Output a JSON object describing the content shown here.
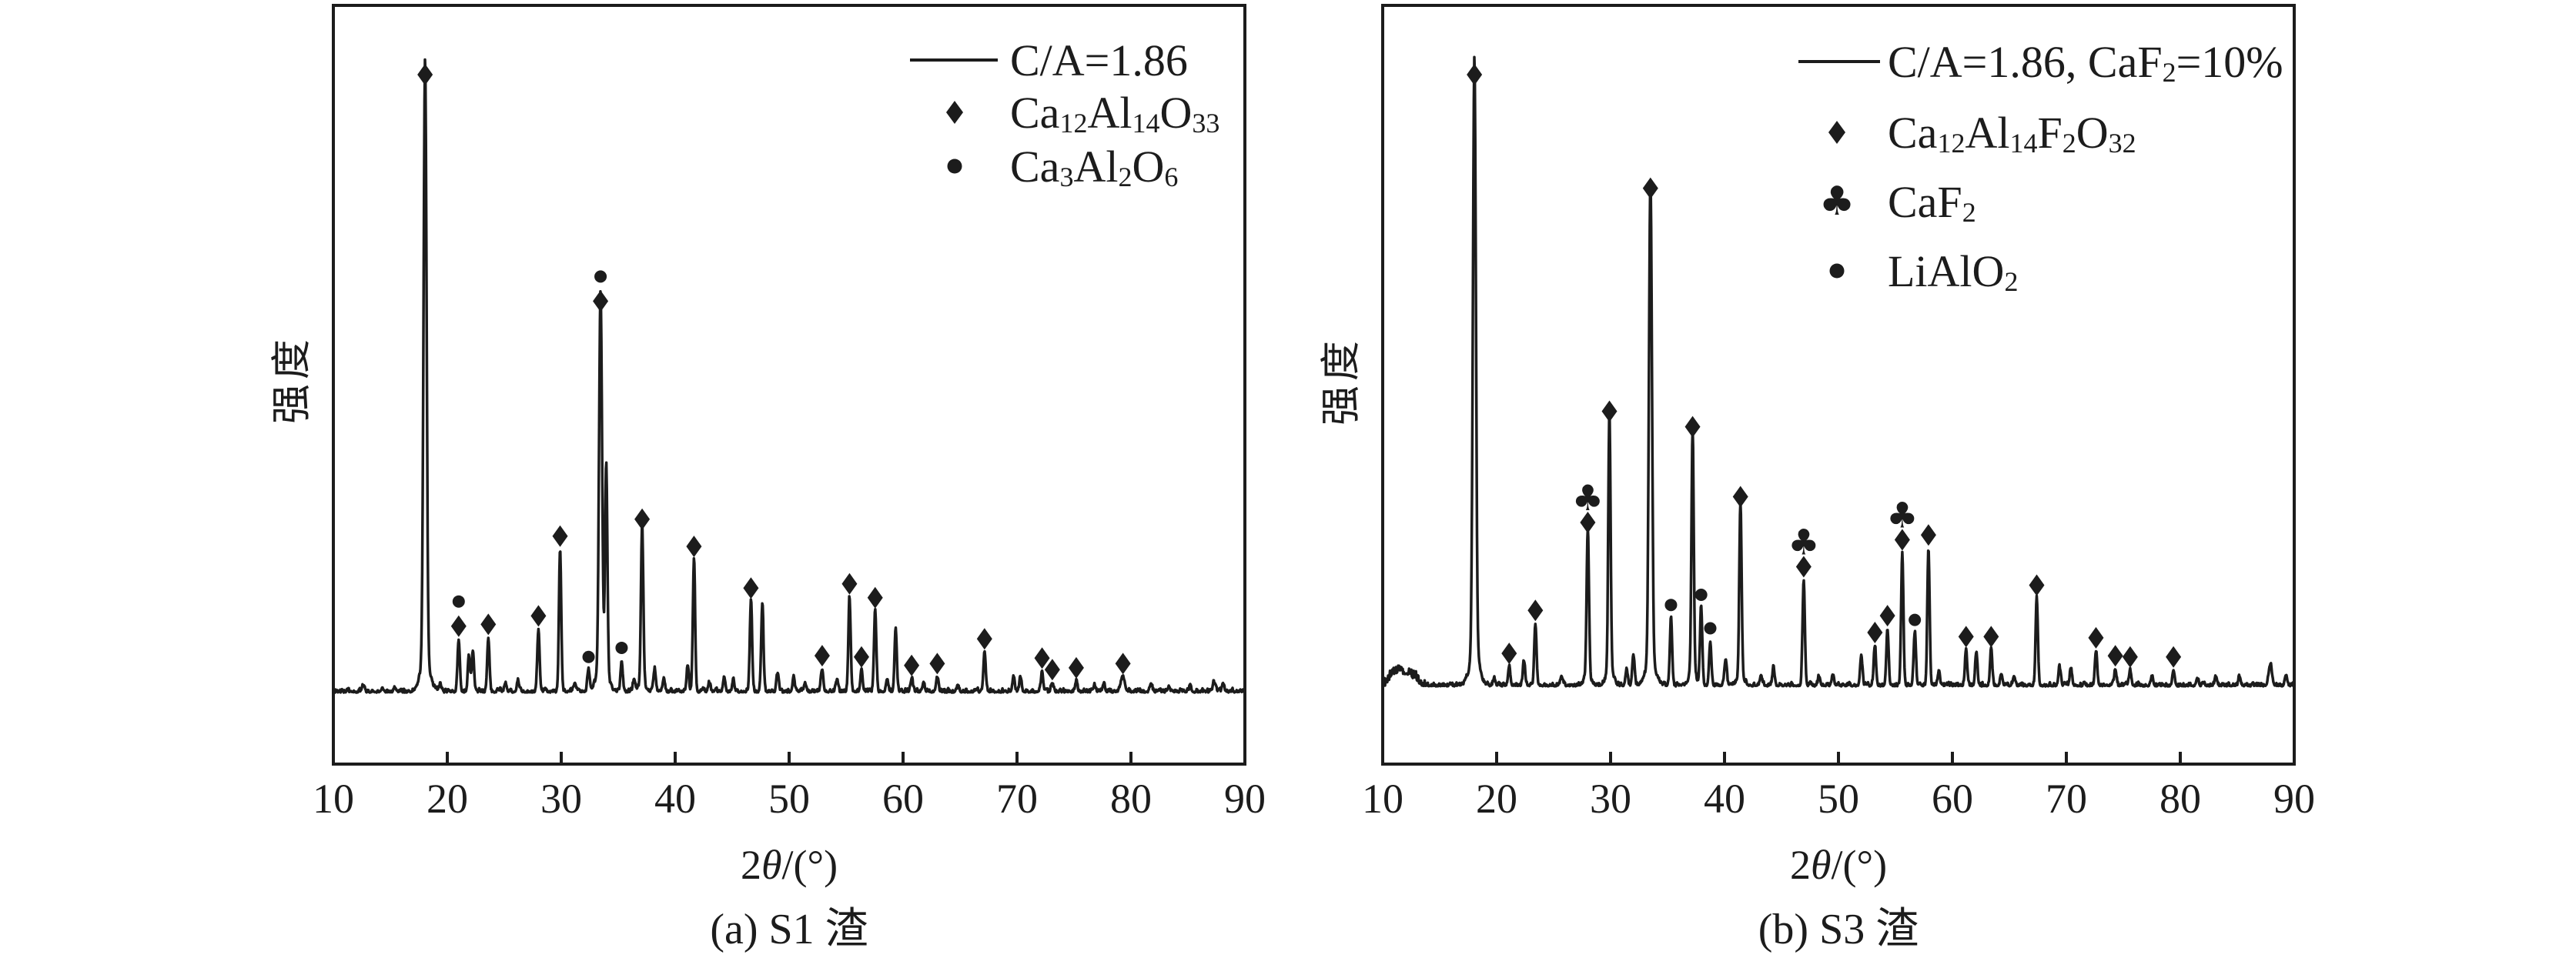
{
  "figure": {
    "background": "#ffffff",
    "ink_color": "#1c1c1c",
    "noise_amp": 6
  },
  "chart_data": [
    {
      "type": "line",
      "panel": "a",
      "caption": "(a) S1 渣",
      "xlabel_parts": [
        {
          "t": "2"
        },
        {
          "t": "θ",
          "italic": true
        },
        {
          "t": "/(°)"
        }
      ],
      "ylabel": "强度",
      "xlim": [
        10,
        90
      ],
      "x_ticks": [
        10,
        20,
        30,
        40,
        50,
        60,
        70,
        80,
        90
      ],
      "grid": false,
      "series_label": "C/A=1.86",
      "legend_position": "top-right-inside",
      "legend": [
        {
          "marker": "line",
          "parts": [
            {
              "t": "C/A=1.86"
            }
          ]
        },
        {
          "marker": "diamond",
          "parts": [
            {
              "t": "Ca"
            },
            {
              "s": "12"
            },
            {
              "t": "Al"
            },
            {
              "s": "14"
            },
            {
              "t": "O"
            },
            {
              "s": "33"
            }
          ]
        },
        {
          "marker": "circle",
          "parts": [
            {
              "t": "Ca"
            },
            {
              "s": "3"
            },
            {
              "t": "Al"
            },
            {
              "s": "2"
            },
            {
              "t": "O"
            },
            {
              "s": "6"
            }
          ]
        }
      ],
      "ylabel_note": "intensity (arbitrary units, no y ticks)",
      "noise_regions": [],
      "peaks": [
        {
          "x": 12.6,
          "h": 0.8
        },
        {
          "x": 14.3,
          "h": 0.7
        },
        {
          "x": 15.4,
          "h": 0.8
        },
        {
          "x": 18.05,
          "h": 100,
          "m": [
            "diamond"
          ],
          "s": 0.13
        },
        {
          "x": 19.4,
          "h": 1.2
        },
        {
          "x": 21.0,
          "h": 8.7,
          "m": [
            "diamond",
            "circle"
          ]
        },
        {
          "x": 21.9,
          "h": 5.7
        },
        {
          "x": 22.25,
          "h": 6.9
        },
        {
          "x": 23.6,
          "h": 9.0,
          "m": [
            "diamond"
          ]
        },
        {
          "x": 25.1,
          "h": 1.5
        },
        {
          "x": 26.2,
          "h": 1.8
        },
        {
          "x": 28.0,
          "h": 10.4,
          "m": [
            "diamond"
          ]
        },
        {
          "x": 29.9,
          "h": 23.6,
          "m": [
            "diamond"
          ]
        },
        {
          "x": 31.2,
          "h": 1.5
        },
        {
          "x": 32.4,
          "h": 3.6,
          "m": [
            "circle"
          ]
        },
        {
          "x": 33.45,
          "h": 62.5,
          "m": [
            "diamond",
            "circle"
          ],
          "s": 0.13
        },
        {
          "x": 33.95,
          "h": 34.8
        },
        {
          "x": 35.3,
          "h": 5.1,
          "m": [
            "circle"
          ]
        },
        {
          "x": 36.4,
          "h": 2.0
        },
        {
          "x": 37.1,
          "h": 26.4,
          "m": [
            "diamond"
          ]
        },
        {
          "x": 38.2,
          "h": 3.8
        },
        {
          "x": 39.0,
          "h": 2.2
        },
        {
          "x": 41.1,
          "h": 4.5
        },
        {
          "x": 41.65,
          "h": 21.9,
          "m": [
            "diamond"
          ]
        },
        {
          "x": 43.0,
          "h": 1.5
        },
        {
          "x": 44.3,
          "h": 2.5
        },
        {
          "x": 45.1,
          "h": 1.8
        },
        {
          "x": 46.65,
          "h": 15.0,
          "m": [
            "diamond"
          ]
        },
        {
          "x": 47.65,
          "h": 14.7
        },
        {
          "x": 49.0,
          "h": 3.2
        },
        {
          "x": 50.4,
          "h": 2.3
        },
        {
          "x": 51.4,
          "h": 1.5
        },
        {
          "x": 52.9,
          "h": 3.8,
          "m": [
            "diamond"
          ]
        },
        {
          "x": 54.2,
          "h": 1.8
        },
        {
          "x": 55.3,
          "h": 15.7,
          "m": [
            "diamond"
          ]
        },
        {
          "x": 56.35,
          "h": 3.6,
          "m": [
            "diamond"
          ]
        },
        {
          "x": 57.55,
          "h": 13.4,
          "m": [
            "diamond"
          ]
        },
        {
          "x": 58.6,
          "h": 2.2
        },
        {
          "x": 59.35,
          "h": 10.2
        },
        {
          "x": 60.75,
          "h": 2.2,
          "m": [
            "diamond"
          ]
        },
        {
          "x": 61.8,
          "h": 1.5
        },
        {
          "x": 63.0,
          "h": 2.5,
          "m": [
            "diamond"
          ]
        },
        {
          "x": 64.8,
          "h": 1.2
        },
        {
          "x": 67.15,
          "h": 6.6,
          "m": [
            "diamond"
          ]
        },
        {
          "x": 69.7,
          "h": 2.6
        },
        {
          "x": 70.3,
          "h": 2.2
        },
        {
          "x": 72.2,
          "h": 3.4,
          "m": [
            "diamond"
          ]
        },
        {
          "x": 73.1,
          "h": 1.5,
          "m": [
            "diamond"
          ]
        },
        {
          "x": 75.2,
          "h": 1.8,
          "m": [
            "diamond"
          ]
        },
        {
          "x": 76.8,
          "h": 1.2
        },
        {
          "x": 77.6,
          "h": 1.3
        },
        {
          "x": 79.3,
          "h": 2.5,
          "m": [
            "diamond"
          ],
          "s": 0.16
        },
        {
          "x": 81.8,
          "h": 1.0
        },
        {
          "x": 83.3,
          "h": 0.8
        },
        {
          "x": 85.2,
          "h": 0.8
        },
        {
          "x": 87.3,
          "h": 1.4
        },
        {
          "x": 88.1,
          "h": 1.2
        }
      ]
    },
    {
      "type": "line",
      "panel": "b",
      "caption": "(b) S3 渣",
      "xlabel_parts": [
        {
          "t": "2"
        },
        {
          "t": "θ",
          "italic": true
        },
        {
          "t": "/(°)"
        }
      ],
      "ylabel": "强度",
      "xlim": [
        10,
        90
      ],
      "x_ticks": [
        10,
        20,
        30,
        40,
        50,
        60,
        70,
        80,
        90
      ],
      "grid": false,
      "series_label": "C/A=1.86, CaF2=10%",
      "legend_position": "top-right-inside",
      "legend": [
        {
          "marker": "line",
          "parts": [
            {
              "t": "C/A=1.86, CaF"
            },
            {
              "s": "2"
            },
            {
              "t": "=10%"
            }
          ]
        },
        {
          "marker": "diamond",
          "parts": [
            {
              "t": "Ca"
            },
            {
              "s": "12"
            },
            {
              "t": "Al"
            },
            {
              "s": "14"
            },
            {
              "t": "F"
            },
            {
              "s": "2"
            },
            {
              "t": "O"
            },
            {
              "s": "32"
            }
          ]
        },
        {
          "marker": "club",
          "parts": [
            {
              "t": "CaF"
            },
            {
              "s": "2"
            }
          ]
        },
        {
          "marker": "circle",
          "parts": [
            {
              "t": "LiAlO"
            },
            {
              "s": "2"
            }
          ]
        }
      ],
      "ylabel_note": "intensity (arbitrary units, no y ticks)",
      "noise_regions": [
        {
          "from": 10.0,
          "to": 13.8,
          "amp": 13
        }
      ],
      "peaks": [
        {
          "x": 10.8,
          "h": 1.6,
          "s": 0.25
        },
        {
          "x": 11.4,
          "h": 2.2,
          "s": 0.3
        },
        {
          "x": 12.1,
          "h": 1.8,
          "s": 0.3
        },
        {
          "x": 12.8,
          "h": 1.2,
          "s": 0.3
        },
        {
          "x": 18.05,
          "h": 100,
          "m": [
            "diamond"
          ],
          "s": 0.13
        },
        {
          "x": 19.8,
          "h": 1.2
        },
        {
          "x": 21.1,
          "h": 3.2,
          "m": [
            "diamond"
          ]
        },
        {
          "x": 22.4,
          "h": 4.2
        },
        {
          "x": 23.4,
          "h": 10.4,
          "m": [
            "diamond"
          ]
        },
        {
          "x": 25.7,
          "h": 1.6
        },
        {
          "x": 28.0,
          "h": 25.1,
          "m": [
            "diamond",
            "club"
          ]
        },
        {
          "x": 29.9,
          "h": 43.7,
          "m": [
            "diamond"
          ]
        },
        {
          "x": 31.4,
          "h": 2.6
        },
        {
          "x": 32.0,
          "h": 5.2
        },
        {
          "x": 33.5,
          "h": 81.0,
          "m": [
            "diamond"
          ],
          "s": 0.13
        },
        {
          "x": 35.3,
          "h": 11.3,
          "m": [
            "circle"
          ]
        },
        {
          "x": 37.2,
          "h": 41.1,
          "m": [
            "diamond"
          ]
        },
        {
          "x": 37.95,
          "h": 13.0,
          "m": [
            "circle"
          ]
        },
        {
          "x": 38.75,
          "h": 7.4,
          "m": [
            "circle"
          ]
        },
        {
          "x": 40.1,
          "h": 4.5
        },
        {
          "x": 41.4,
          "h": 29.4,
          "m": [
            "diamond"
          ]
        },
        {
          "x": 43.2,
          "h": 1.8
        },
        {
          "x": 44.3,
          "h": 3.0
        },
        {
          "x": 46.95,
          "h": 17.7,
          "m": [
            "diamond",
            "club"
          ]
        },
        {
          "x": 48.3,
          "h": 1.6
        },
        {
          "x": 49.5,
          "h": 1.8
        },
        {
          "x": 52.0,
          "h": 5.0
        },
        {
          "x": 53.2,
          "h": 6.7,
          "m": [
            "diamond"
          ]
        },
        {
          "x": 54.3,
          "h": 9.5,
          "m": [
            "diamond"
          ]
        },
        {
          "x": 55.6,
          "h": 22.2,
          "m": [
            "diamond",
            "club"
          ]
        },
        {
          "x": 56.7,
          "h": 8.8,
          "m": [
            "circle"
          ]
        },
        {
          "x": 57.9,
          "h": 23.0,
          "m": [
            "diamond"
          ]
        },
        {
          "x": 58.8,
          "h": 2.2
        },
        {
          "x": 61.2,
          "h": 6.0,
          "m": [
            "diamond"
          ]
        },
        {
          "x": 62.1,
          "h": 5.4
        },
        {
          "x": 63.4,
          "h": 6.0,
          "m": [
            "diamond"
          ]
        },
        {
          "x": 64.3,
          "h": 2.0
        },
        {
          "x": 65.4,
          "h": 1.6
        },
        {
          "x": 67.4,
          "h": 14.6,
          "m": [
            "diamond"
          ]
        },
        {
          "x": 69.4,
          "h": 3.0
        },
        {
          "x": 70.4,
          "h": 3.0
        },
        {
          "x": 72.6,
          "h": 5.8,
          "m": [
            "diamond"
          ]
        },
        {
          "x": 74.3,
          "h": 2.8,
          "m": [
            "diamond"
          ]
        },
        {
          "x": 75.6,
          "h": 2.6,
          "m": [
            "diamond"
          ]
        },
        {
          "x": 77.5,
          "h": 1.5
        },
        {
          "x": 79.4,
          "h": 2.6,
          "m": [
            "diamond"
          ]
        },
        {
          "x": 81.5,
          "h": 1.3
        },
        {
          "x": 83.1,
          "h": 1.3
        },
        {
          "x": 85.2,
          "h": 1.6
        },
        {
          "x": 87.9,
          "h": 3.5,
          "s": 0.15
        },
        {
          "x": 89.3,
          "h": 1.6
        }
      ]
    }
  ]
}
